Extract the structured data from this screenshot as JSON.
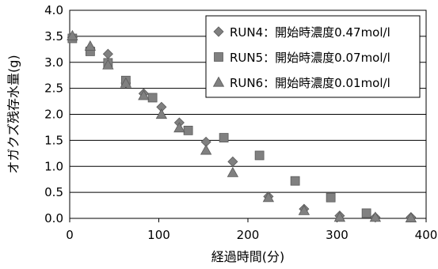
{
  "chart_data": {
    "type": "scatter",
    "title": "",
    "xlabel": "経過時間(分)",
    "ylabel": "オガクズ残存水量(g)",
    "xlim": [
      0,
      400
    ],
    "ylim": [
      0,
      4.0
    ],
    "x_ticks": [
      "0",
      "100",
      "200",
      "300",
      "400"
    ],
    "y_ticks": [
      "0.0",
      "0.5",
      "1.0",
      "1.5",
      "2.0",
      "2.5",
      "3.0",
      "3.5",
      "4.0"
    ],
    "grid": "horizontal",
    "legend_position": "top-right",
    "series": [
      {
        "name": "RUN4：開始時濃度0.47mol/l",
        "marker": "diamond",
        "color": "#808080",
        "x": [
          3,
          23,
          43,
          63,
          83,
          103,
          123,
          153,
          183,
          223,
          263,
          303,
          343,
          383
        ],
        "y": [
          3.48,
          3.27,
          3.16,
          2.6,
          2.4,
          2.14,
          1.84,
          1.47,
          1.09,
          0.42,
          0.18,
          0.05,
          0.02,
          0.02
        ]
      },
      {
        "name": "RUN5：開始時濃度0.07mol/l",
        "marker": "square",
        "color": "#808080",
        "x": [
          3,
          23,
          43,
          63,
          93,
          133,
          173,
          213,
          253,
          293,
          333
        ],
        "y": [
          3.46,
          3.21,
          2.99,
          2.65,
          2.32,
          1.69,
          1.55,
          1.21,
          0.72,
          0.4,
          0.1
        ]
      },
      {
        "name": "RUN6：開始時濃度0.01mol/l",
        "marker": "triangle",
        "color": "#808080",
        "x": [
          3,
          23,
          43,
          63,
          83,
          103,
          123,
          153,
          183,
          223,
          263,
          303,
          343,
          383
        ],
        "y": [
          3.51,
          3.31,
          2.95,
          2.6,
          2.36,
          2.0,
          1.74,
          1.31,
          0.88,
          0.4,
          0.15,
          0.02,
          0.02,
          0.01
        ]
      }
    ]
  }
}
